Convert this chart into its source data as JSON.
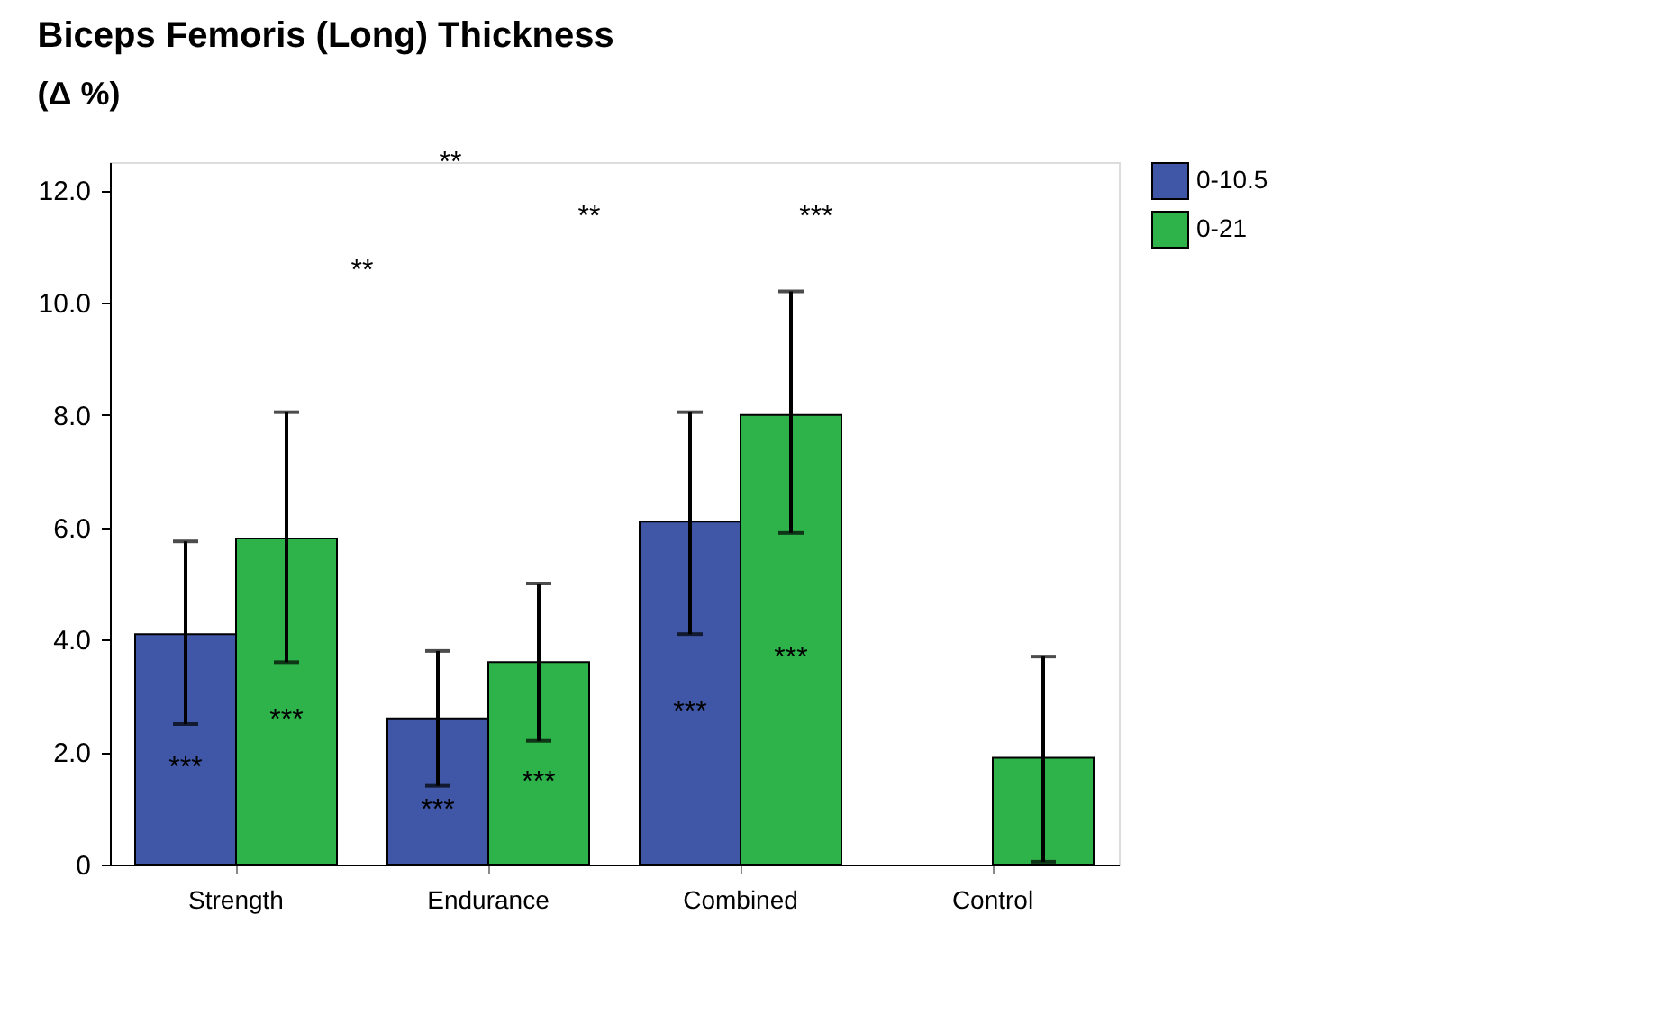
{
  "chart_data": {
    "type": "bar",
    "title": "Biceps Femoris (Long) Thickness",
    "ylabel": "(Δ %)",
    "categories": [
      "Strength",
      "Endurance",
      "Combined",
      "Control"
    ],
    "series": [
      {
        "name": "0-10.5",
        "color": "#3f57a6",
        "values": [
          4.1,
          2.6,
          6.1,
          null
        ],
        "errors": [
          [
            2.5,
            5.75
          ],
          [
            1.4,
            3.8
          ],
          [
            4.1,
            8.05
          ],
          null
        ],
        "value_labels": [
          "***",
          "***",
          "***",
          null
        ]
      },
      {
        "name": "0-21",
        "color": "#2eb34b",
        "values": [
          5.8,
          3.6,
          8.0,
          1.9
        ],
        "errors": [
          [
            3.6,
            8.05
          ],
          [
            2.2,
            5.0
          ],
          [
            5.9,
            10.2
          ],
          [
            0.05,
            3.7
          ]
        ],
        "value_labels": [
          "***",
          "***",
          "***",
          null
        ]
      }
    ],
    "ylim": [
      0,
      12.5
    ],
    "yticks": [
      {
        "value": 0,
        "label": "0"
      },
      {
        "value": 2,
        "label": "2.0"
      },
      {
        "value": 4,
        "label": "4.0"
      },
      {
        "value": 6,
        "label": "6.0"
      },
      {
        "value": 8,
        "label": "8.0"
      },
      {
        "value": 10,
        "label": "10.0"
      },
      {
        "value": 12,
        "label": "12.0"
      }
    ],
    "annotations": [
      "**",
      "**",
      "***",
      "**"
    ],
    "legend": "top right",
    "grid": false
  }
}
